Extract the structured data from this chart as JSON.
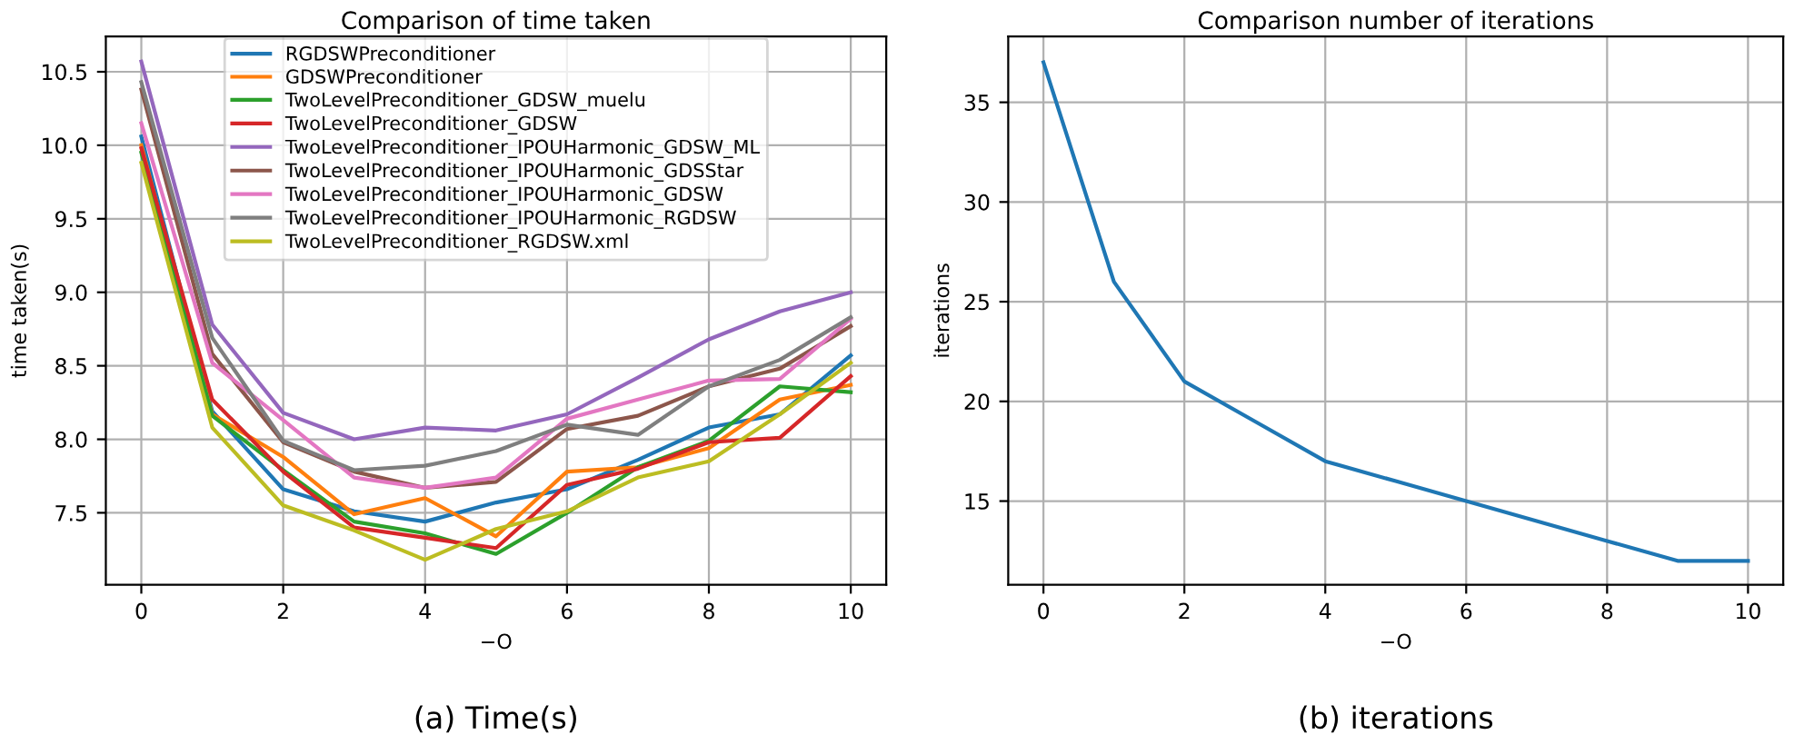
{
  "chart_data": [
    {
      "type": "line",
      "title": "Comparison of time taken",
      "xlabel": "−O",
      "ylabel": "time taken(s)",
      "annotations": [
        "(a) Time(s)"
      ],
      "x": [
        0,
        1,
        2,
        3,
        4,
        5,
        6,
        7,
        8,
        9,
        10
      ],
      "xlim": [
        -0.5,
        10.5
      ],
      "xticks": [
        0,
        2,
        4,
        6,
        8,
        10
      ],
      "ylim": [
        7.01,
        10.74
      ],
      "yticks": [
        7.5,
        {
          "value": 8,
          "label": "8.0"
        },
        8.5,
        {
          "value": 9,
          "label": "9.0"
        },
        9.5,
        {
          "value": 10,
          "label": "10.0"
        },
        10.5
      ],
      "grid": true,
      "legend": "top",
      "series": [
        {
          "name": "RGDSWPreconditioner",
          "color": "#1f77b4",
          "values": [
            10.06,
            8.19,
            7.66,
            7.51,
            7.44,
            7.57,
            7.66,
            7.86,
            8.08,
            8.17,
            8.57
          ]
        },
        {
          "name": "GDSWPreconditioner",
          "color": "#ff7f0e",
          "values": [
            10.0,
            8.17,
            7.88,
            7.49,
            7.6,
            7.34,
            7.78,
            7.81,
            7.94,
            8.27,
            8.37
          ]
        },
        {
          "name": "TwoLevelPreconditioner_GDSW_muelu",
          "color": "#2ca02c",
          "values": [
            9.95,
            8.16,
            7.79,
            7.44,
            7.36,
            7.22,
            7.5,
            7.81,
            7.99,
            8.36,
            8.32
          ]
        },
        {
          "name": "TwoLevelPreconditioner_GDSW",
          "color": "#d62728",
          "values": [
            9.98,
            8.27,
            7.78,
            7.4,
            7.33,
            7.26,
            7.69,
            7.8,
            7.98,
            8.01,
            8.43
          ]
        },
        {
          "name": "TwoLevelPreconditioner_IPOUHarmonic_GDSW_ML",
          "color": "#9467bd",
          "values": [
            10.57,
            8.78,
            8.18,
            8.0,
            8.08,
            8.06,
            8.17,
            8.42,
            8.68,
            8.87,
            9.0
          ]
        },
        {
          "name": "TwoLevelPreconditioner_IPOUHarmonic_GDSStar",
          "color": "#8c564b",
          "values": [
            10.38,
            8.58,
            7.98,
            7.78,
            7.67,
            7.71,
            8.07,
            8.16,
            8.36,
            8.48,
            8.77
          ]
        },
        {
          "name": "TwoLevelPreconditioner_IPOUHarmonic_GDSW",
          "color": "#e377c2",
          "values": [
            10.15,
            8.52,
            8.13,
            7.74,
            7.67,
            7.74,
            8.14,
            8.27,
            8.4,
            8.41,
            8.82
          ]
        },
        {
          "name": "TwoLevelPreconditioner_IPOUHarmonic_RGDSW",
          "color": "#7f7f7f",
          "values": [
            10.43,
            8.69,
            7.99,
            7.79,
            7.82,
            7.92,
            8.1,
            8.03,
            8.36,
            8.54,
            8.83
          ]
        },
        {
          "name": "TwoLevelPreconditioner_RGDSW.xml",
          "color": "#bcbd22",
          "values": [
            9.88,
            8.08,
            7.55,
            7.38,
            7.18,
            7.39,
            7.51,
            7.74,
            7.85,
            8.17,
            8.52
          ]
        }
      ]
    },
    {
      "type": "line",
      "title": "Comparison number of iterations",
      "xlabel": "−O",
      "ylabel": "iterations",
      "annotations": [
        "(b) iterations"
      ],
      "x": [
        0,
        1,
        2,
        3,
        4,
        5,
        6,
        7,
        8,
        9,
        10
      ],
      "xlim": [
        -0.5,
        10.5
      ],
      "xticks": [
        0,
        2,
        4,
        6,
        8,
        10
      ],
      "ylim": [
        10.8,
        38.3
      ],
      "yticks": [
        15,
        20,
        25,
        30,
        35
      ],
      "grid": true,
      "series": [
        {
          "color": "#1f77b4",
          "values": [
            37,
            26,
            21,
            19,
            17,
            16,
            15,
            14,
            13,
            12,
            12
          ]
        }
      ]
    }
  ]
}
